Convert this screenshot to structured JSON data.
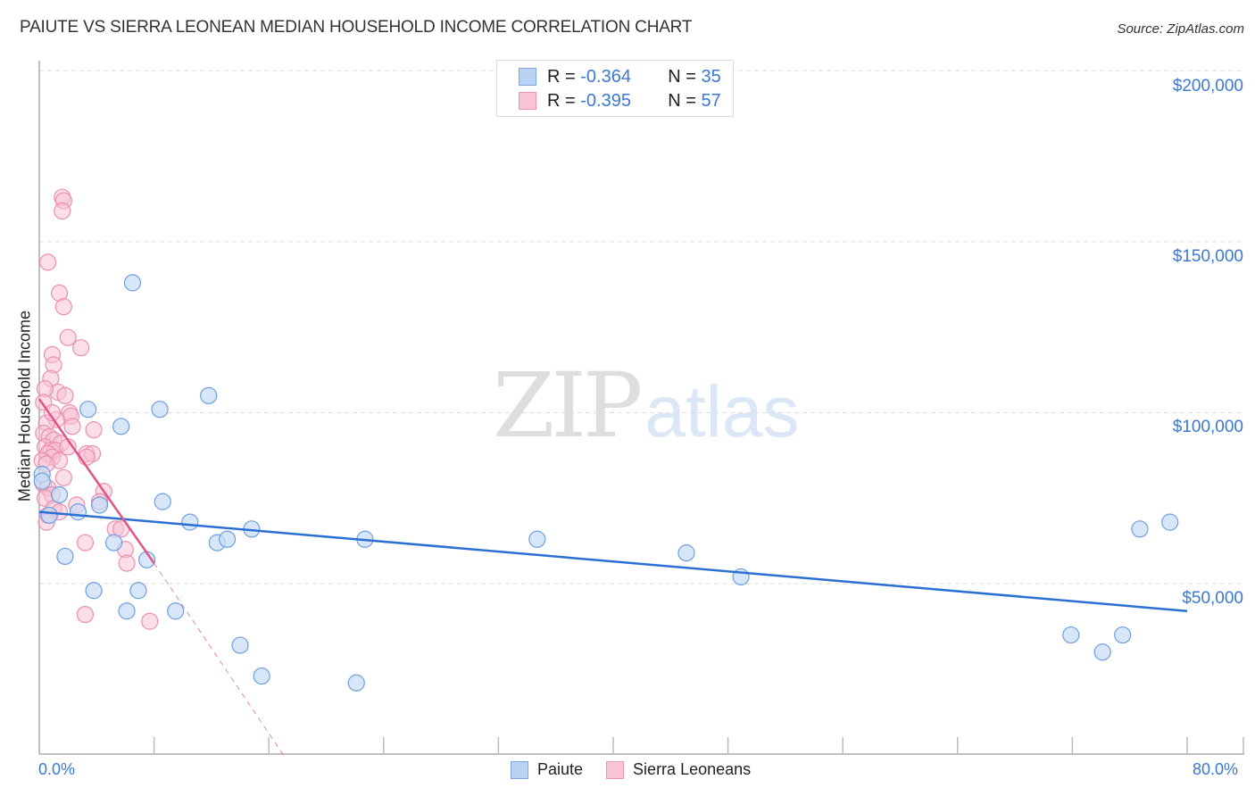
{
  "header": {
    "title": "PAIUTE VS SIERRA LEONEAN MEDIAN HOUSEHOLD INCOME CORRELATION CHART",
    "source": "Source: ZipAtlas.com"
  },
  "watermark": {
    "zip": "ZIP",
    "atlas": "atlas"
  },
  "legend": {
    "series": [
      {
        "name": "Paiute",
        "r_label": "R =",
        "r_value": "-0.364",
        "n_label": "N =",
        "n_value": "35",
        "fill": "#b9d2f3",
        "stroke": "#7aa6e2"
      },
      {
        "name": "Sierra Leoneans",
        "r_label": "R =",
        "r_value": "-0.395",
        "n_label": "N =",
        "n_value": "57",
        "fill": "#f9c5d6",
        "stroke": "#ee94b2"
      }
    ]
  },
  "axes": {
    "ylabel": "Median Household Income",
    "yticks": [
      "$200,000",
      "$150,000",
      "$100,000",
      "$50,000"
    ],
    "xticks": [
      "0.0%",
      "80.0%"
    ]
  },
  "colors": {
    "paiute_point_fill": "#c6dbf6",
    "paiute_point_stroke": "#6d9fe0",
    "paiute_line": "#2a6fd2",
    "sierra_point_fill": "#f8c3d4",
    "sierra_point_stroke": "#ec8eae",
    "sierra_line": "#e0548a",
    "tick_label": "#3b78d4",
    "grid": "#dddddd"
  },
  "chart_data": {
    "type": "scatter",
    "title": "PAIUTE VS SIERRA LEONEAN MEDIAN HOUSEHOLD INCOME CORRELATION CHART",
    "xlabel": "",
    "ylabel": "Median Household Income",
    "xlim": [
      0,
      80
    ],
    "ylim": [
      0,
      200000
    ],
    "x_unit": "%",
    "grid": {
      "y": true,
      "x": false
    },
    "y_gridlines": [
      50000,
      100000,
      150000,
      200000
    ],
    "legend_position": "top-center and bottom-center",
    "series": [
      {
        "name": "Paiute",
        "R": -0.364,
        "N": 35,
        "color": "#6d9fe0",
        "trendline": {
          "x": [
            0,
            80
          ],
          "y": [
            71000,
            42000
          ]
        },
        "points": [
          [
            6.5,
            138000
          ],
          [
            3.4,
            101000
          ],
          [
            5.7,
            96000
          ],
          [
            8.4,
            101000
          ],
          [
            11.8,
            105000
          ],
          [
            8.6,
            74000
          ],
          [
            10.5,
            68000
          ],
          [
            14.8,
            66000
          ],
          [
            12.4,
            62000
          ],
          [
            13.1,
            63000
          ],
          [
            22.7,
            63000
          ],
          [
            34.7,
            63000
          ],
          [
            45.1,
            59000
          ],
          [
            48.9,
            52000
          ],
          [
            76.7,
            66000
          ],
          [
            78.8,
            68000
          ],
          [
            5.2,
            62000
          ],
          [
            7.5,
            57000
          ],
          [
            1.8,
            58000
          ],
          [
            3.8,
            48000
          ],
          [
            6.9,
            48000
          ],
          [
            6.1,
            42000
          ],
          [
            9.5,
            42000
          ],
          [
            14.0,
            32000
          ],
          [
            15.5,
            23000
          ],
          [
            22.1,
            21000
          ],
          [
            71.9,
            35000
          ],
          [
            75.5,
            35000
          ],
          [
            74.1,
            30000
          ],
          [
            0.2,
            82000
          ],
          [
            1.4,
            76000
          ],
          [
            0.7,
            70000
          ],
          [
            4.2,
            73000
          ],
          [
            2.7,
            71000
          ],
          [
            0.2,
            80000
          ]
        ]
      },
      {
        "name": "Sierra Leoneans",
        "R": -0.395,
        "N": 57,
        "color": "#ec8eae",
        "trendline": {
          "x": [
            0,
            8
          ],
          "y": [
            104000,
            56000
          ],
          "dashed_extension": {
            "x": [
              8,
              17
            ],
            "y": [
              56000,
              0
            ]
          }
        },
        "points": [
          [
            1.6,
            163000
          ],
          [
            1.7,
            162000
          ],
          [
            1.6,
            159000
          ],
          [
            0.6,
            144000
          ],
          [
            1.4,
            135000
          ],
          [
            1.7,
            131000
          ],
          [
            2.0,
            122000
          ],
          [
            2.9,
            119000
          ],
          [
            0.9,
            117000
          ],
          [
            1.0,
            114000
          ],
          [
            0.8,
            110000
          ],
          [
            1.3,
            106000
          ],
          [
            0.4,
            107000
          ],
          [
            1.8,
            105000
          ],
          [
            0.3,
            103000
          ],
          [
            2.1,
            100000
          ],
          [
            2.2,
            99000
          ],
          [
            1.2,
            98000
          ],
          [
            0.5,
            97000
          ],
          [
            2.3,
            96000
          ],
          [
            3.8,
            95000
          ],
          [
            0.3,
            94000
          ],
          [
            0.7,
            93000
          ],
          [
            1.0,
            92000
          ],
          [
            1.5,
            91000
          ],
          [
            0.4,
            90000
          ],
          [
            0.8,
            89000
          ],
          [
            1.1,
            89000
          ],
          [
            0.6,
            88000
          ],
          [
            3.3,
            88000
          ],
          [
            3.7,
            88000
          ],
          [
            0.9,
            87000
          ],
          [
            1.4,
            86000
          ],
          [
            0.2,
            86000
          ],
          [
            0.5,
            85000
          ],
          [
            1.7,
            81000
          ],
          [
            0.3,
            79000
          ],
          [
            0.6,
            78000
          ],
          [
            4.5,
            77000
          ],
          [
            0.9,
            76000
          ],
          [
            0.4,
            75000
          ],
          [
            2.6,
            73000
          ],
          [
            1.0,
            72000
          ],
          [
            1.4,
            71000
          ],
          [
            0.6,
            70000
          ],
          [
            0.5,
            68000
          ],
          [
            5.3,
            66000
          ],
          [
            5.7,
            66000
          ],
          [
            3.2,
            62000
          ],
          [
            6.0,
            60000
          ],
          [
            6.1,
            56000
          ],
          [
            3.2,
            41000
          ],
          [
            7.7,
            39000
          ],
          [
            4.2,
            74000
          ],
          [
            2.0,
            90000
          ],
          [
            0.9,
            100000
          ],
          [
            3.3,
            87000
          ]
        ]
      }
    ]
  }
}
